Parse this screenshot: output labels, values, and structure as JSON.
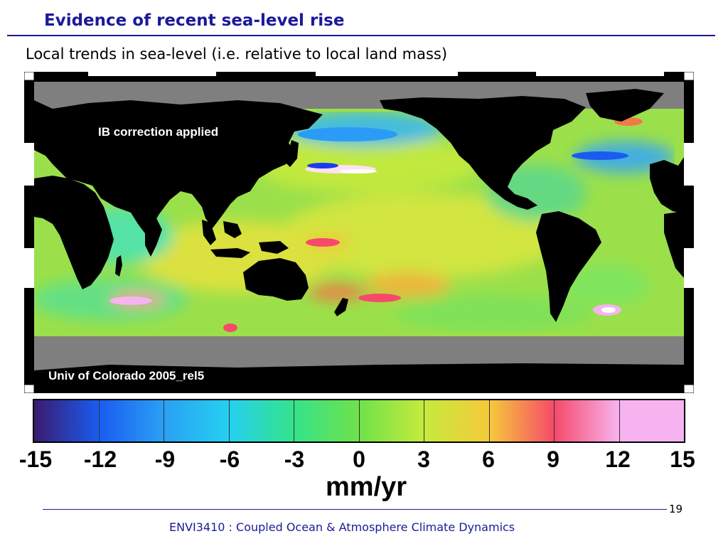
{
  "slide": {
    "title": "Evidence of recent sea-level rise",
    "subtitle": "Local trends in sea-level (i.e. relative to local land mass)",
    "page_number": "19",
    "footer": "ENVI3410 : Coupled Ocean & Atmosphere Climate Dynamics"
  },
  "map": {
    "label_top": "IB correction applied",
    "label_bottom": "Univ of Colorado 2005_rel5"
  },
  "colorbar": {
    "ticks": [
      "-15",
      "-12",
      "-9",
      "-6",
      "-3",
      "0",
      "3",
      "6",
      "9",
      "12",
      "15"
    ],
    "unit": "mm/yr",
    "colors": [
      "#3a1a6e",
      "#1a5cf0",
      "#2aa0f5",
      "#25d0f0",
      "#35e38a",
      "#6fe24a",
      "#c6ea3c",
      "#f5c93a",
      "#f64a6a",
      "#f7b3f0"
    ]
  }
}
